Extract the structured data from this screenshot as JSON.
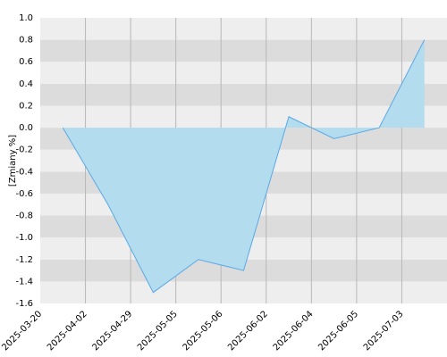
{
  "chart_data": {
    "type": "area",
    "y_label": "[Zmiany %]",
    "categories": [
      "2025-03-20",
      "2025-04-02",
      "2025-04-29",
      "2025-05-05",
      "2025-05-06",
      "2025-06-02",
      "2025-06-04",
      "2025-06-05",
      "2025-07-03"
    ],
    "values": [
      0,
      -0.7,
      -1.5,
      -1.2,
      -1.3,
      0.1,
      -0.1,
      0,
      0.8
    ],
    "color": "#5aa9e6",
    "fill": "#b3dcee",
    "ylim": [
      -1.6,
      1.0
    ],
    "yticks": [
      -1.6,
      -1.4,
      -1.2,
      {
        "value": -1.0,
        "label": "-1.0"
      },
      -0.8,
      -0.6,
      -0.4,
      -0.2,
      {
        "value": 0,
        "label": "0.0"
      },
      0.2,
      0.4,
      0.6,
      0.8,
      {
        "value": 1.0,
        "label": "1.0"
      }
    ],
    "grid": true
  }
}
